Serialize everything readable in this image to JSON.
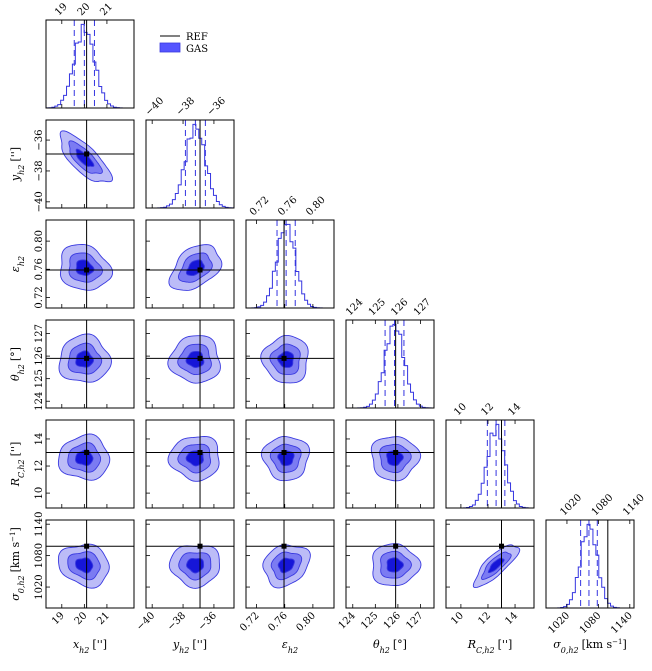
{
  "chart_data": {
    "type": "corner",
    "params": [
      {
        "id": "x",
        "label": "x_h2 ['']",
        "main": "x",
        "sub": "h2",
        "unit": "['']",
        "ref": 20.1,
        "mean": 20.0,
        "sd": 0.45,
        "range": [
          18.3,
          22.2
        ],
        "ticks": [
          19,
          20,
          21
        ],
        "ticklabels": [
          "19",
          "20",
          "21"
        ]
      },
      {
        "id": "y",
        "label": "y_h2 ['']",
        "main": "y",
        "sub": "h2",
        "unit": "['']",
        "ref": -36.9,
        "mean": -37.2,
        "sd": 0.65,
        "range": [
          -40.4,
          -34.7
        ],
        "ticks": [
          -40,
          -38,
          -36
        ],
        "ticklabels": [
          "−40",
          "−38",
          "−36"
        ]
      },
      {
        "id": "e",
        "label": "ε_h2",
        "main": "ε",
        "sub": "h2",
        "unit": "",
        "ref": 0.759,
        "mean": 0.762,
        "sd": 0.013,
        "range": [
          0.705,
          0.83
        ],
        "ticks": [
          0.72,
          0.76,
          0.8
        ],
        "ticklabels": [
          "0.72",
          "0.76",
          "0.80"
        ]
      },
      {
        "id": "t",
        "label": "θ_h2 [°]",
        "main": "θ",
        "sub": "h2",
        "unit": "[°]",
        "ref": 125.9,
        "mean": 125.85,
        "sd": 0.42,
        "range": [
          123.7,
          127.6
        ],
        "ticks": [
          124,
          125,
          126,
          127
        ],
        "ticklabels": [
          "124",
          "125",
          "126",
          "127"
        ]
      },
      {
        "id": "r",
        "label": "R_C,h2 ['']",
        "main": "R",
        "sub": "C,h2",
        "unit": "['']",
        "ref": 13.0,
        "mean": 12.6,
        "sd": 0.65,
        "range": [
          8.9,
          15.4
        ],
        "ticks": [
          10,
          12,
          14
        ],
        "ticklabels": [
          "10",
          "12",
          "14"
        ]
      },
      {
        "id": "s",
        "label": "σ_0,h2 [km s^-1]",
        "main": "σ",
        "sub": "0,h2",
        "unit": "[km s",
        "unit_sup": "−1",
        "unit_end": "]",
        "ref": 1098,
        "mean": 1062,
        "sd": 16,
        "range": [
          980,
          1148
        ],
        "ticks": [
          1020,
          1080,
          1140
        ],
        "ticklabels": [
          "1020",
          "1080",
          "1140"
        ]
      }
    ],
    "correlations": [
      {
        "pair": [
          "x",
          "y"
        ],
        "r": -0.75
      },
      {
        "pair": [
          "x",
          "e"
        ],
        "r": -0.15
      },
      {
        "pair": [
          "y",
          "e"
        ],
        "r": 0.4
      },
      {
        "pair": [
          "r",
          "s"
        ],
        "r": 0.8
      },
      {
        "pair": [
          "e",
          "s"
        ],
        "r": 0.2
      },
      {
        "pair": [
          "x",
          "s"
        ],
        "r": -0.15
      }
    ],
    "contour_levels": [
      0.39,
      0.86,
      0.99
    ],
    "quantile_marks": [
      0.16,
      0.5,
      0.84
    ],
    "legend": [
      {
        "name": "REF",
        "style": "line",
        "color": "#000000"
      },
      {
        "name": "GAS",
        "style": "fill",
        "color": "#5555ff"
      }
    ],
    "colors": {
      "fill_outer": "#bcbcf7",
      "fill_mid": "#7b7bf2",
      "fill_inner": "#1616d8",
      "edge": "#3a3ae0",
      "hist": "#3535e0",
      "ref": "#000000"
    }
  }
}
